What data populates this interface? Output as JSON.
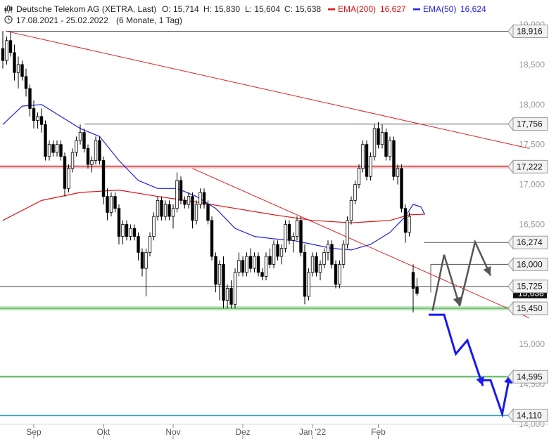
{
  "header": {
    "instrument": "Deutsche Telekom AG (XETRA, Last)",
    "open": "O: 15,714",
    "high": "H: 15,830",
    "low": "L: 15,604",
    "close": "C: 15,638",
    "ema200_label": "EMA(200)",
    "ema200_value": "16,627",
    "ema50_label": "EMA(50)",
    "ema50_value": "16,624",
    "range": "17.08.2021 - 25.02.2022",
    "period": "(6 Monate, 1 Tag)"
  },
  "colors": {
    "ema200": "#dd1111",
    "ema50": "#2222dd",
    "candle": "#000000",
    "level_line": "#555555",
    "support_band": "#7ed07e",
    "resistance_band": "#e06060",
    "forecast_blue": "#1a1aee",
    "forecast_gray": "#555555"
  },
  "chart_data": {
    "type": "candlestick",
    "title": "Deutsche Telekom AG (XETRA, Last)",
    "xlabel": "",
    "ylabel": "",
    "x_ticks": [
      "Sep",
      "Okt",
      "Nov",
      "Dez",
      "Jan '22",
      "Feb"
    ],
    "y_ticks": [
      "14,000",
      "14,500",
      "15,000",
      "16,000",
      "16,500",
      "17,000",
      "17,500",
      "18,000",
      "18,500",
      "19,000"
    ],
    "ylim": [
      14.0,
      19.0
    ],
    "last_price_label": "15,638",
    "series": [
      {
        "name": "EMA(200)",
        "last": 16.627
      },
      {
        "name": "EMA(50)",
        "last": 16.624
      }
    ],
    "horizontal_levels": [
      {
        "label": "18,916",
        "value": 18.916
      },
      {
        "label": "17,756",
        "value": 17.756
      },
      {
        "label": "17,222",
        "value": 17.222
      },
      {
        "label": "16,274",
        "value": 16.274
      },
      {
        "label": "16,000",
        "value": 16.0
      },
      {
        "label": "15,725",
        "value": 15.725
      },
      {
        "label": "15,450",
        "value": 15.45
      },
      {
        "label": "14,595",
        "value": 14.595
      },
      {
        "label": "14,110",
        "value": 14.11
      }
    ],
    "candles": [
      {
        "o": 18.7,
        "h": 18.92,
        "l": 18.45,
        "c": 18.55
      },
      {
        "o": 18.55,
        "h": 18.85,
        "l": 18.5,
        "c": 18.8
      },
      {
        "o": 18.8,
        "h": 18.9,
        "l": 18.6,
        "c": 18.65
      },
      {
        "o": 18.65,
        "h": 18.75,
        "l": 18.3,
        "c": 18.4
      },
      {
        "o": 18.4,
        "h": 18.6,
        "l": 18.2,
        "c": 18.5
      },
      {
        "o": 18.5,
        "h": 18.55,
        "l": 18.3,
        "c": 18.35
      },
      {
        "o": 18.35,
        "h": 18.45,
        "l": 18.1,
        "c": 18.2
      },
      {
        "o": 18.2,
        "h": 18.25,
        "l": 17.85,
        "c": 17.95
      },
      {
        "o": 17.95,
        "h": 18.05,
        "l": 17.7,
        "c": 17.8
      },
      {
        "o": 17.8,
        "h": 17.9,
        "l": 17.7,
        "c": 17.85
      },
      {
        "o": 17.85,
        "h": 17.95,
        "l": 17.65,
        "c": 17.75
      },
      {
        "o": 17.75,
        "h": 17.8,
        "l": 17.3,
        "c": 17.35
      },
      {
        "o": 17.35,
        "h": 17.55,
        "l": 17.3,
        "c": 17.5
      },
      {
        "o": 17.5,
        "h": 17.55,
        "l": 17.35,
        "c": 17.4
      },
      {
        "o": 17.4,
        "h": 17.55,
        "l": 17.35,
        "c": 17.5
      },
      {
        "o": 17.5,
        "h": 17.55,
        "l": 17.3,
        "c": 17.35
      },
      {
        "o": 17.35,
        "h": 17.4,
        "l": 16.85,
        "c": 16.95
      },
      {
        "o": 16.95,
        "h": 17.25,
        "l": 16.9,
        "c": 17.2
      },
      {
        "o": 17.2,
        "h": 17.45,
        "l": 17.15,
        "c": 17.4
      },
      {
        "o": 17.4,
        "h": 17.6,
        "l": 17.35,
        "c": 17.55
      },
      {
        "o": 17.55,
        "h": 17.75,
        "l": 17.5,
        "c": 17.65
      },
      {
        "o": 17.65,
        "h": 17.7,
        "l": 17.4,
        "c": 17.45
      },
      {
        "o": 17.45,
        "h": 17.5,
        "l": 17.2,
        "c": 17.25
      },
      {
        "o": 17.25,
        "h": 17.35,
        "l": 17.15,
        "c": 17.3
      },
      {
        "o": 17.3,
        "h": 17.6,
        "l": 17.25,
        "c": 17.55
      },
      {
        "o": 17.55,
        "h": 17.6,
        "l": 17.25,
        "c": 17.3
      },
      {
        "o": 17.3,
        "h": 17.35,
        "l": 16.75,
        "c": 16.85
      },
      {
        "o": 16.85,
        "h": 16.95,
        "l": 16.55,
        "c": 16.65
      },
      {
        "o": 16.65,
        "h": 16.9,
        "l": 16.6,
        "c": 16.85
      },
      {
        "o": 16.85,
        "h": 16.9,
        "l": 16.65,
        "c": 16.7
      },
      {
        "o": 16.7,
        "h": 16.75,
        "l": 16.25,
        "c": 16.35
      },
      {
        "o": 16.35,
        "h": 16.55,
        "l": 16.25,
        "c": 16.5
      },
      {
        "o": 16.5,
        "h": 16.55,
        "l": 16.3,
        "c": 16.35
      },
      {
        "o": 16.35,
        "h": 16.5,
        "l": 16.3,
        "c": 16.45
      },
      {
        "o": 16.45,
        "h": 16.5,
        "l": 16.3,
        "c": 16.35
      },
      {
        "o": 16.35,
        "h": 16.4,
        "l": 16.05,
        "c": 16.15
      },
      {
        "o": 16.15,
        "h": 16.2,
        "l": 15.85,
        "c": 15.95
      },
      {
        "o": 15.95,
        "h": 16.2,
        "l": 15.6,
        "c": 16.15
      },
      {
        "o": 16.15,
        "h": 16.4,
        "l": 16.1,
        "c": 16.35
      },
      {
        "o": 16.35,
        "h": 16.65,
        "l": 16.3,
        "c": 16.6
      },
      {
        "o": 16.6,
        "h": 16.85,
        "l": 16.55,
        "c": 16.8
      },
      {
        "o": 16.8,
        "h": 16.85,
        "l": 16.55,
        "c": 16.6
      },
      {
        "o": 16.6,
        "h": 16.8,
        "l": 16.55,
        "c": 16.75
      },
      {
        "o": 16.75,
        "h": 16.8,
        "l": 16.55,
        "c": 16.6
      },
      {
        "o": 16.6,
        "h": 16.75,
        "l": 16.45,
        "c": 16.7
      },
      {
        "o": 16.7,
        "h": 17.15,
        "l": 16.65,
        "c": 17.05
      },
      {
        "o": 17.05,
        "h": 17.1,
        "l": 16.75,
        "c": 16.8
      },
      {
        "o": 16.8,
        "h": 16.85,
        "l": 16.7,
        "c": 16.75
      },
      {
        "o": 16.75,
        "h": 16.9,
        "l": 16.7,
        "c": 16.85
      },
      {
        "o": 16.85,
        "h": 16.9,
        "l": 16.45,
        "c": 16.55
      },
      {
        "o": 16.55,
        "h": 16.8,
        "l": 16.5,
        "c": 16.75
      },
      {
        "o": 16.75,
        "h": 16.95,
        "l": 16.7,
        "c": 16.9
      },
      {
        "o": 16.9,
        "h": 16.95,
        "l": 16.7,
        "c": 16.75
      },
      {
        "o": 16.75,
        "h": 16.8,
        "l": 16.5,
        "c": 16.55
      },
      {
        "o": 16.55,
        "h": 16.6,
        "l": 16.05,
        "c": 16.1
      },
      {
        "o": 16.1,
        "h": 16.15,
        "l": 15.65,
        "c": 15.75
      },
      {
        "o": 15.75,
        "h": 16.05,
        "l": 15.55,
        "c": 16.0
      },
      {
        "o": 16.0,
        "h": 16.1,
        "l": 15.45,
        "c": 15.55
      },
      {
        "o": 15.55,
        "h": 15.75,
        "l": 15.45,
        "c": 15.7
      },
      {
        "o": 15.7,
        "h": 15.8,
        "l": 15.45,
        "c": 15.5
      },
      {
        "o": 15.5,
        "h": 15.95,
        "l": 15.45,
        "c": 15.9
      },
      {
        "o": 15.9,
        "h": 16.15,
        "l": 15.85,
        "c": 16.05
      },
      {
        "o": 16.05,
        "h": 16.1,
        "l": 15.85,
        "c": 15.9
      },
      {
        "o": 15.9,
        "h": 16.15,
        "l": 15.85,
        "c": 16.1
      },
      {
        "o": 16.1,
        "h": 16.2,
        "l": 15.9,
        "c": 15.95
      },
      {
        "o": 15.95,
        "h": 16.15,
        "l": 15.9,
        "c": 16.1
      },
      {
        "o": 16.1,
        "h": 16.15,
        "l": 15.85,
        "c": 15.9
      },
      {
        "o": 15.9,
        "h": 15.95,
        "l": 15.8,
        "c": 15.85
      },
      {
        "o": 15.85,
        "h": 16.15,
        "l": 15.8,
        "c": 16.1
      },
      {
        "o": 16.1,
        "h": 16.2,
        "l": 15.95,
        "c": 16.0
      },
      {
        "o": 16.0,
        "h": 16.3,
        "l": 15.95,
        "c": 16.25
      },
      {
        "o": 16.25,
        "h": 16.3,
        "l": 16.05,
        "c": 16.1
      },
      {
        "o": 16.1,
        "h": 16.25,
        "l": 16.0,
        "c": 16.2
      },
      {
        "o": 16.2,
        "h": 16.55,
        "l": 16.15,
        "c": 16.5
      },
      {
        "o": 16.5,
        "h": 16.55,
        "l": 16.25,
        "c": 16.3
      },
      {
        "o": 16.3,
        "h": 16.4,
        "l": 16.15,
        "c": 16.35
      },
      {
        "o": 16.35,
        "h": 16.6,
        "l": 16.3,
        "c": 16.55
      },
      {
        "o": 16.55,
        "h": 16.6,
        "l": 16.1,
        "c": 16.15
      },
      {
        "o": 16.15,
        "h": 16.25,
        "l": 15.5,
        "c": 15.6
      },
      {
        "o": 15.6,
        "h": 15.95,
        "l": 15.55,
        "c": 15.9
      },
      {
        "o": 15.9,
        "h": 16.15,
        "l": 15.85,
        "c": 16.1
      },
      {
        "o": 16.1,
        "h": 16.15,
        "l": 15.85,
        "c": 15.9
      },
      {
        "o": 15.9,
        "h": 16.05,
        "l": 15.8,
        "c": 16.0
      },
      {
        "o": 16.0,
        "h": 16.2,
        "l": 15.95,
        "c": 16.15
      },
      {
        "o": 16.15,
        "h": 16.3,
        "l": 16.05,
        "c": 16.25
      },
      {
        "o": 16.25,
        "h": 16.3,
        "l": 15.95,
        "c": 16.0
      },
      {
        "o": 16.0,
        "h": 16.05,
        "l": 15.7,
        "c": 15.75
      },
      {
        "o": 15.75,
        "h": 16.05,
        "l": 15.7,
        "c": 16.0
      },
      {
        "o": 16.0,
        "h": 16.3,
        "l": 15.95,
        "c": 16.25
      },
      {
        "o": 16.25,
        "h": 16.6,
        "l": 16.2,
        "c": 16.55
      },
      {
        "o": 16.55,
        "h": 16.85,
        "l": 16.5,
        "c": 16.8
      },
      {
        "o": 16.8,
        "h": 17.05,
        "l": 16.75,
        "c": 17.0
      },
      {
        "o": 17.0,
        "h": 17.25,
        "l": 16.95,
        "c": 17.2
      },
      {
        "o": 17.2,
        "h": 17.55,
        "l": 17.15,
        "c": 17.5
      },
      {
        "o": 17.5,
        "h": 17.55,
        "l": 17.05,
        "c": 17.1
      },
      {
        "o": 17.1,
        "h": 17.4,
        "l": 17.05,
        "c": 17.35
      },
      {
        "o": 17.35,
        "h": 17.75,
        "l": 17.3,
        "c": 17.7
      },
      {
        "o": 17.7,
        "h": 17.78,
        "l": 17.45,
        "c": 17.5
      },
      {
        "o": 17.5,
        "h": 17.75,
        "l": 17.45,
        "c": 17.65
      },
      {
        "o": 17.65,
        "h": 17.7,
        "l": 17.3,
        "c": 17.35
      },
      {
        "o": 17.35,
        "h": 17.6,
        "l": 17.3,
        "c": 17.55
      },
      {
        "o": 17.55,
        "h": 17.6,
        "l": 17.05,
        "c": 17.1
      },
      {
        "o": 17.1,
        "h": 17.25,
        "l": 17.0,
        "c": 17.2
      },
      {
        "o": 17.2,
        "h": 17.25,
        "l": 16.65,
        "c": 16.7
      },
      {
        "o": 16.7,
        "h": 16.75,
        "l": 16.27,
        "c": 16.4
      },
      {
        "o": 16.4,
        "h": 16.65,
        "l": 16.35,
        "c": 16.6
      },
      {
        "o": 15.9,
        "h": 16.0,
        "l": 15.4,
        "c": 15.7
      },
      {
        "o": 15.714,
        "h": 15.83,
        "l": 15.604,
        "c": 15.638
      }
    ],
    "ema200": [
      {
        "i": 0,
        "v": 16.55
      },
      {
        "i": 10,
        "v": 16.8
      },
      {
        "i": 20,
        "v": 16.9
      },
      {
        "i": 30,
        "v": 16.93
      },
      {
        "i": 40,
        "v": 16.85
      },
      {
        "i": 50,
        "v": 16.78
      },
      {
        "i": 60,
        "v": 16.7
      },
      {
        "i": 70,
        "v": 16.62
      },
      {
        "i": 80,
        "v": 16.55
      },
      {
        "i": 90,
        "v": 16.52
      },
      {
        "i": 100,
        "v": 16.55
      },
      {
        "i": 105,
        "v": 16.62
      },
      {
        "i": 109,
        "v": 16.627
      }
    ],
    "ema50": [
      {
        "i": 0,
        "v": 17.75
      },
      {
        "i": 5,
        "v": 17.98
      },
      {
        "i": 10,
        "v": 18.0
      },
      {
        "i": 15,
        "v": 17.85
      },
      {
        "i": 20,
        "v": 17.7
      },
      {
        "i": 25,
        "v": 17.6
      },
      {
        "i": 30,
        "v": 17.3
      },
      {
        "i": 35,
        "v": 17.05
      },
      {
        "i": 40,
        "v": 16.95
      },
      {
        "i": 45,
        "v": 16.95
      },
      {
        "i": 50,
        "v": 16.85
      },
      {
        "i": 55,
        "v": 16.7
      },
      {
        "i": 60,
        "v": 16.45
      },
      {
        "i": 65,
        "v": 16.35
      },
      {
        "i": 70,
        "v": 16.32
      },
      {
        "i": 75,
        "v": 16.3
      },
      {
        "i": 80,
        "v": 16.25
      },
      {
        "i": 85,
        "v": 16.2
      },
      {
        "i": 90,
        "v": 16.18
      },
      {
        "i": 95,
        "v": 16.25
      },
      {
        "i": 100,
        "v": 16.4
      },
      {
        "i": 104,
        "v": 16.6
      },
      {
        "i": 106,
        "v": 16.75
      },
      {
        "i": 108,
        "v": 16.72
      },
      {
        "i": 109,
        "v": 16.624
      }
    ],
    "trendlines": [
      {
        "from": {
          "i": 1,
          "v": 18.916
        },
        "to": {
          "i": 136,
          "v": 17.45
        }
      },
      {
        "from": {
          "i": 49,
          "v": 17.2
        },
        "to": {
          "i": 136,
          "v": 15.33
        }
      }
    ],
    "forecast_gray": [
      {
        "i": 111,
        "v": 15.42
      },
      {
        "i": 114,
        "v": 16.12
      },
      {
        "i": 118,
        "v": 15.48
      },
      {
        "i": 122,
        "v": 16.28
      },
      {
        "i": 126,
        "v": 15.86
      }
    ],
    "forecast_blue": [
      {
        "i": 110,
        "v": 15.37
      },
      {
        "i": 114,
        "v": 15.37
      },
      {
        "i": 117,
        "v": 14.88
      },
      {
        "i": 120,
        "v": 15.05
      },
      {
        "i": 124,
        "v": 14.48
      }
    ],
    "forecast_blue_2": [
      {
        "i": 123,
        "v": 14.55
      },
      {
        "i": 126,
        "v": 14.55
      },
      {
        "i": 129,
        "v": 14.13
      },
      {
        "i": 131,
        "v": 14.62
      }
    ]
  }
}
